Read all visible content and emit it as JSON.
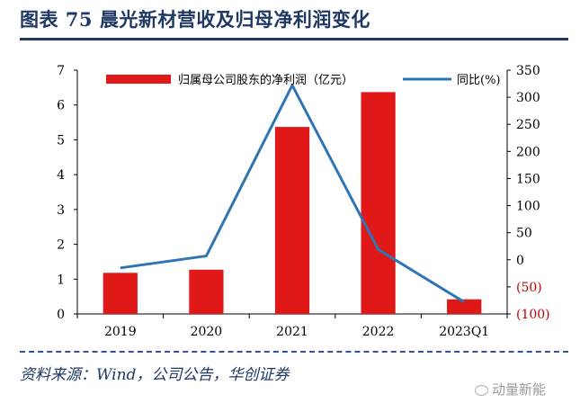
{
  "figure": {
    "title": "图表 75  晨光新材营收及归母净利润变化",
    "source": "资料来源：Wind，公司公告，华创证券",
    "watermark": "动量新能"
  },
  "chart_data": {
    "type": "bar+line",
    "categories": [
      "2019",
      "2020",
      "2021",
      "2022",
      "2023Q1"
    ],
    "series": [
      {
        "name": "归属母公司股东的净利润（亿元）",
        "type": "bar",
        "axis": "left",
        "values": [
          1.18,
          1.27,
          5.37,
          6.37,
          0.42
        ],
        "color": "#e01818"
      },
      {
        "name": "同比(%)",
        "type": "line",
        "axis": "right",
        "values": [
          -15,
          7,
          322,
          19,
          -78
        ],
        "color": "#2e75b6"
      }
    ],
    "left_axis": {
      "min": 0,
      "max": 7,
      "ticks": [
        "0",
        "1",
        "2",
        "3",
        "4",
        "5",
        "6",
        "7"
      ]
    },
    "right_axis": {
      "min": -100,
      "max": 350,
      "ticks": [
        {
          "value": -100,
          "label": "(100)"
        },
        {
          "value": -50,
          "label": "(50)"
        },
        {
          "value": 0,
          "label": "0"
        },
        {
          "value": 50,
          "label": "50"
        },
        {
          "value": 100,
          "label": "100"
        },
        {
          "value": 150,
          "label": "150"
        },
        {
          "value": 200,
          "label": "200"
        },
        {
          "value": 250,
          "label": "250"
        },
        {
          "value": 300,
          "label": "300"
        },
        {
          "value": 350,
          "label": "350"
        }
      ],
      "negative_color": "#c00000"
    },
    "grid": false,
    "legend": "top"
  }
}
